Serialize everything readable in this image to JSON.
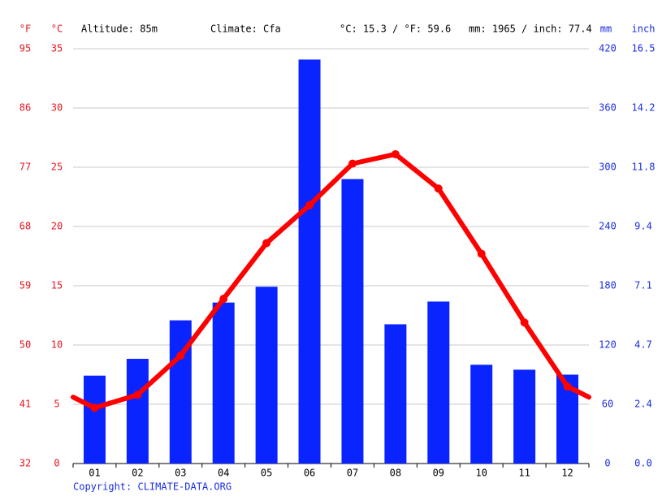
{
  "chart_data": {
    "type": "climate",
    "units": {
      "f": "°F",
      "c": "°C",
      "mm": "mm",
      "inch": "inch"
    },
    "altitude": "Altitude: 85m",
    "climate": "Climate: Cfa",
    "mean_temperature": "°C: 15.3 / °F: 59.6",
    "annual_precipitation": "mm: 1965 / inch: 77.4",
    "copyright": "Copyright: CLIMATE-DATA.ORG",
    "categories": [
      "01",
      "02",
      "03",
      "04",
      "05",
      "06",
      "07",
      "08",
      "09",
      "10",
      "11",
      "12"
    ],
    "series": [
      {
        "type": "bar",
        "axis": "y2",
        "color": "#0a24ff",
        "values": [
          89,
          106,
          145,
          163,
          179,
          409,
          288,
          141,
          164,
          100,
          95,
          90
        ]
      },
      {
        "type": "line",
        "axis": "y",
        "color": "#ff0000",
        "values": [
          4.7,
          5.8,
          9.1,
          13.9,
          18.6,
          21.8,
          25.3,
          26.1,
          23.2,
          17.7,
          11.9,
          6.5
        ]
      }
    ],
    "ylim": [
      0,
      35
    ],
    "yticks": [
      0,
      5,
      10,
      15,
      20,
      25,
      30,
      35
    ],
    "yflim": [
      32,
      95
    ],
    "yfticks": [
      32,
      41,
      50,
      59,
      68,
      77,
      86,
      95
    ],
    "y2lim": [
      0,
      420
    ],
    "y2ticks": [
      0,
      60,
      120,
      180,
      240,
      300,
      360,
      420
    ],
    "y3lim": [
      0,
      16.535
    ],
    "y3ticks": [
      {
        "value": 0,
        "label": "0.0"
      },
      {
        "value": 2.362,
        "label": "2.4"
      },
      {
        "value": 4.724,
        "label": "4.7"
      },
      {
        "value": 7.087,
        "label": "7.1"
      },
      {
        "value": 9.449,
        "label": "9.4"
      },
      {
        "value": 11.811,
        "label": "11.8"
      },
      {
        "value": 14.173,
        "label": "14.2"
      },
      {
        "value": 16.535,
        "label": "16.5"
      }
    ],
    "grid": true
  }
}
